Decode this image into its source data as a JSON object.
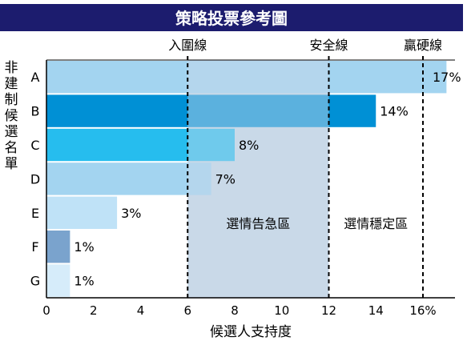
{
  "chart_data": {
    "type": "bar",
    "orientation": "horizontal",
    "title": "策略投票參考圖",
    "xlabel": "候選人支持度",
    "ylabel": "非建制候選名單",
    "xlim": [
      0,
      17
    ],
    "x_ticks": [
      "0",
      "2",
      "4",
      "6",
      "8",
      "10",
      "12",
      "14",
      "16%"
    ],
    "x_tick_values": [
      0,
      2,
      4,
      6,
      8,
      10,
      12,
      14,
      16
    ],
    "categories": [
      "A",
      "B",
      "C",
      "D",
      "E",
      "F",
      "G"
    ],
    "values": [
      17,
      14,
      8,
      7,
      3,
      1,
      1
    ],
    "value_labels": [
      "17%",
      "14%",
      "8%",
      "7%",
      "3%",
      "1%",
      "1%"
    ],
    "bar_colors": [
      "#a3d4f0",
      "#0090d5",
      "#26bdee",
      "#a3d4f0",
      "#bfe2f7",
      "#7aa3cd",
      "#d6ecfa"
    ],
    "threshold_lines": [
      {
        "label": "入圍線",
        "value": 6
      },
      {
        "label": "安全線",
        "value": 12
      },
      {
        "label": "贏硬線",
        "value": 16
      }
    ],
    "zones": [
      {
        "label": "選情告急區",
        "from": 6,
        "to": 12,
        "color": "#c9d9e8"
      },
      {
        "label": "選情穩定區",
        "from": 12,
        "to": 16,
        "color": "#ffffff"
      }
    ],
    "grid": false,
    "colors": {
      "title_bar": "#1c1c6e",
      "axis": "#000000"
    }
  }
}
